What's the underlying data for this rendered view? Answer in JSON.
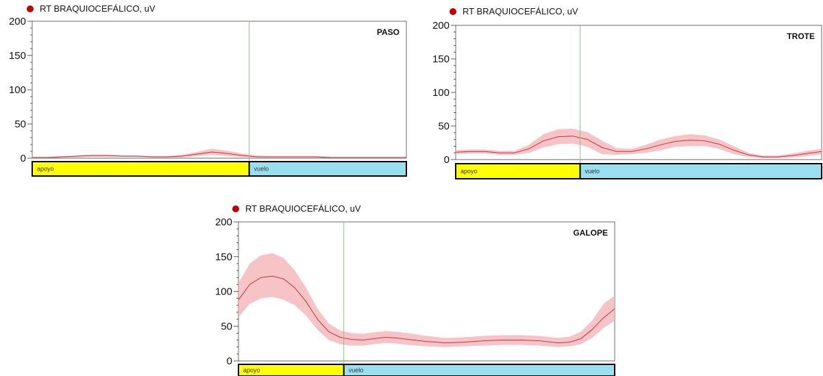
{
  "chart_data": [
    {
      "type": "area",
      "legend": {
        "label": "RT BRAQUIOCEFÁLICO, uV",
        "marker_color": "#c00000",
        "placement": "top-left"
      },
      "corner_label": "PASO",
      "y_ticks": [
        "200",
        "150",
        "100",
        "50",
        "0"
      ],
      "ylim": [
        0,
        200
      ],
      "xlim": [
        0,
        100
      ],
      "divider_x": 58,
      "phases": [
        {
          "label": "apoyo",
          "color": "#ffff00",
          "from": 0,
          "to": 58
        },
        {
          "label": "vuelo",
          "color": "#99dff0",
          "from": 58,
          "to": 100
        }
      ],
      "series": {
        "x": [
          0,
          4,
          8,
          12,
          16,
          20,
          24,
          28,
          32,
          36,
          40,
          44,
          48,
          52,
          56,
          60,
          64,
          68,
          72,
          76,
          80,
          84,
          88,
          92,
          96,
          100
        ],
        "mean": [
          1,
          1,
          2,
          3,
          4,
          4,
          3,
          3,
          2,
          2,
          3,
          6,
          9,
          7,
          4,
          2,
          2,
          2,
          2,
          2,
          1,
          1,
          1,
          1,
          1,
          1
        ],
        "upper": [
          2,
          2,
          3,
          4,
          5,
          5,
          4,
          4,
          3,
          3,
          5,
          9,
          14,
          11,
          7,
          4,
          3,
          3,
          3,
          3,
          2,
          2,
          2,
          2,
          2,
          2
        ],
        "lower": [
          0,
          0,
          1,
          1,
          2,
          2,
          2,
          2,
          1,
          1,
          1,
          3,
          5,
          3,
          2,
          1,
          1,
          1,
          1,
          1,
          0,
          0,
          0,
          0,
          0,
          0
        ]
      }
    },
    {
      "type": "area",
      "legend": {
        "label": "RT BRAQUIOCEFÁLICO, uV",
        "marker_color": "#c00000",
        "placement": "top-left"
      },
      "corner_label": "TROTE",
      "y_ticks": [
        "200",
        "150",
        "100",
        "50",
        "0"
      ],
      "ylim": [
        0,
        200
      ],
      "xlim": [
        0,
        100
      ],
      "divider_x": 34,
      "phases": [
        {
          "label": "apoyo",
          "color": "#ffff00",
          "from": 0,
          "to": 34
        },
        {
          "label": "vuelo",
          "color": "#99dff0",
          "from": 34,
          "to": 100
        }
      ],
      "series": {
        "x": [
          0,
          4,
          8,
          12,
          16,
          20,
          24,
          28,
          32,
          36,
          40,
          44,
          48,
          52,
          56,
          60,
          64,
          68,
          72,
          76,
          80,
          84,
          88,
          92,
          96,
          100
        ],
        "mean": [
          11,
          12,
          12,
          10,
          10,
          16,
          28,
          34,
          35,
          30,
          18,
          12,
          12,
          16,
          22,
          27,
          29,
          28,
          23,
          14,
          7,
          4,
          4,
          6,
          9,
          12
        ],
        "upper": [
          14,
          15,
          15,
          13,
          13,
          22,
          38,
          45,
          46,
          41,
          28,
          17,
          16,
          22,
          30,
          35,
          38,
          36,
          30,
          20,
          10,
          6,
          6,
          9,
          13,
          16
        ],
        "lower": [
          8,
          9,
          9,
          7,
          7,
          10,
          18,
          23,
          24,
          19,
          8,
          7,
          8,
          10,
          14,
          19,
          20,
          20,
          16,
          8,
          4,
          2,
          2,
          3,
          5,
          8
        ]
      }
    },
    {
      "type": "area",
      "legend": {
        "label": "RT BRAQUIOCEFÁLICO, uV",
        "marker_color": "#c00000",
        "placement": "top-left"
      },
      "corner_label": "GALOPE",
      "y_ticks": [
        "200",
        "150",
        "100",
        "50",
        "0"
      ],
      "ylim": [
        0,
        200
      ],
      "xlim": [
        0,
        100
      ],
      "divider_x": 28,
      "phases": [
        {
          "label": "apoyo",
          "color": "#ffff00",
          "from": 0,
          "to": 28
        },
        {
          "label": "vuelo",
          "color": "#99dff0",
          "from": 28,
          "to": 100
        }
      ],
      "series": {
        "x": [
          0,
          3,
          6,
          9,
          12,
          15,
          18,
          21,
          24,
          27,
          30,
          33,
          36,
          39,
          42,
          45,
          50,
          55,
          60,
          65,
          70,
          75,
          80,
          85,
          88,
          91,
          94,
          97,
          100
        ],
        "mean": [
          88,
          110,
          120,
          122,
          118,
          105,
          85,
          60,
          42,
          34,
          31,
          30,
          32,
          34,
          33,
          31,
          28,
          26,
          27,
          29,
          30,
          30,
          29,
          26,
          27,
          32,
          45,
          62,
          75
        ],
        "upper": [
          112,
          140,
          152,
          155,
          148,
          130,
          105,
          75,
          54,
          44,
          40,
          39,
          41,
          43,
          42,
          40,
          36,
          33,
          34,
          36,
          37,
          37,
          36,
          33,
          35,
          42,
          58,
          82,
          94
        ],
        "lower": [
          63,
          82,
          90,
          92,
          88,
          80,
          65,
          45,
          30,
          24,
          22,
          22,
          24,
          26,
          25,
          23,
          21,
          20,
          21,
          22,
          23,
          23,
          22,
          20,
          21,
          24,
          33,
          47,
          58
        ]
      }
    }
  ]
}
